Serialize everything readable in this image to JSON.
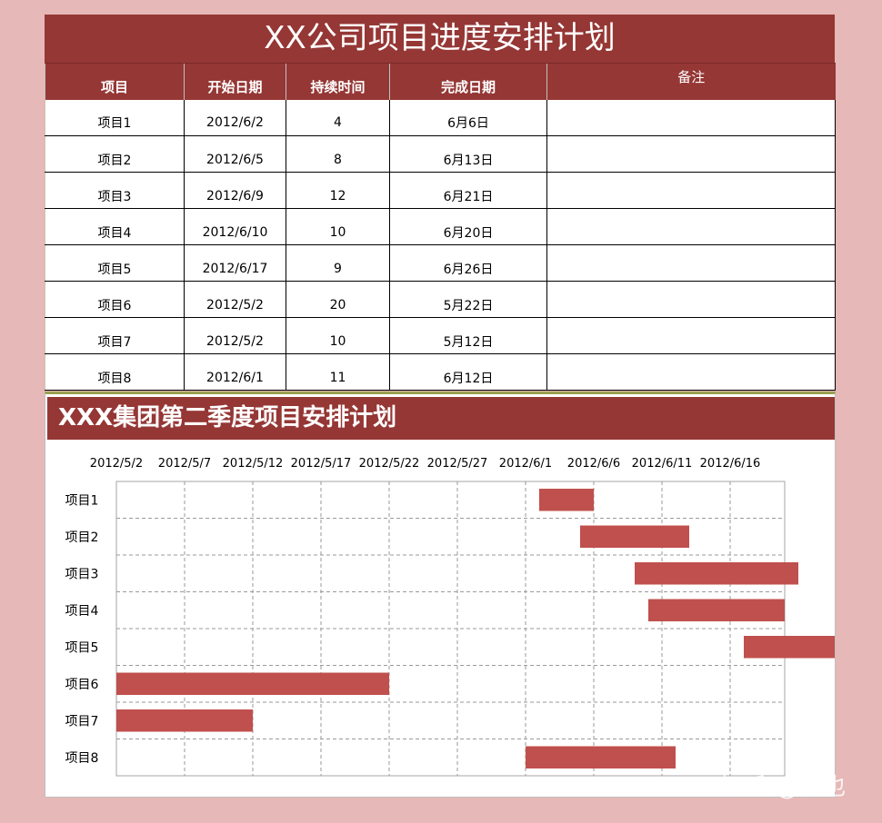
{
  "table": {
    "title": "XX公司项目进度安排计划",
    "headers": [
      "项目",
      "开始日期",
      "持续时间",
      "完成日期",
      "备注"
    ],
    "rows": [
      [
        "项目1",
        "2012/6/2",
        "4",
        "6月6日",
        ""
      ],
      [
        "项目2",
        "2012/6/5",
        "8",
        "6月13日",
        ""
      ],
      [
        "项目3",
        "2012/6/9",
        "12",
        "6月21日",
        ""
      ],
      [
        "项目4",
        "2012/6/10",
        "10",
        "6月20日",
        ""
      ],
      [
        "项目5",
        "2012/6/17",
        "9",
        "6月26日",
        ""
      ],
      [
        "项目6",
        "2012/5/2",
        "20",
        "5月22日",
        ""
      ],
      [
        "项目7",
        "2012/5/2",
        "10",
        "5月12日",
        ""
      ],
      [
        "项目8",
        "2012/6/1",
        "11",
        "6月12日",
        ""
      ]
    ]
  },
  "chart_data": {
    "type": "bar",
    "orientation": "horizontal",
    "title": "XXX集团第二季度项目安排计划",
    "x_axis_position": "top",
    "x_ticks": [
      "2012/5/2",
      "2012/5/7",
      "2012/5/12",
      "2012/5/17",
      "2012/5/22",
      "2012/5/27",
      "2012/6/1",
      "2012/6/6",
      "2012/6/11",
      "2012/6/16"
    ],
    "xlim": [
      "2012/5/2",
      "2012/6/20"
    ],
    "categories": [
      "项目1",
      "项目2",
      "项目3",
      "项目4",
      "项目5",
      "项目6",
      "项目7",
      "项目8"
    ],
    "start": [
      "2012/6/2",
      "2012/6/5",
      "2012/6/9",
      "2012/6/10",
      "2012/6/17",
      "2012/5/2",
      "2012/5/2",
      "2012/6/1"
    ],
    "duration": [
      4,
      8,
      12,
      10,
      9,
      20,
      10,
      11
    ],
    "grid": true,
    "bar_color": "#c0504d"
  },
  "colors": {
    "header": "#953735",
    "background": "#e6b8b7",
    "bar": "#c0504d"
  },
  "watermark": "知乎 @者也"
}
